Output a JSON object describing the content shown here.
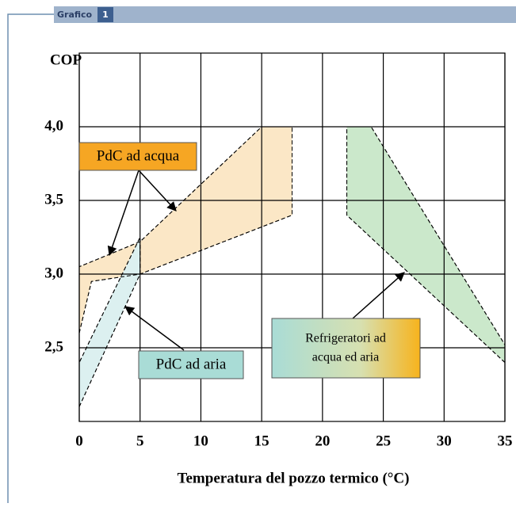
{
  "header": {
    "label": "Grafico",
    "number": "1"
  },
  "chart_data": {
    "type": "region",
    "ylabel": "COP",
    "xlabel": "Temperatura del pozzo termico (°C)",
    "xlim": [
      0,
      35
    ],
    "ylim": [
      2.0,
      4.5
    ],
    "xticks": [
      0,
      5,
      10,
      15,
      20,
      25,
      30,
      35
    ],
    "yticks": [
      {
        "value": 2.5,
        "label": "2,5"
      },
      {
        "value": 3.0,
        "label": "3,0"
      },
      {
        "value": 3.5,
        "label": "3,5"
      },
      {
        "value": 4.0,
        "label": "4,0"
      }
    ],
    "grid": true,
    "regions": [
      {
        "name": "PdC ad acqua",
        "color": "#fbe7c6",
        "x": [
          0,
          1,
          5,
          17.5,
          17.5,
          15,
          5,
          0
        ],
        "y": [
          2.6,
          2.95,
          3.0,
          3.4,
          4.0,
          4.0,
          3.22,
          3.05
        ]
      },
      {
        "name": "PdC ad aria",
        "color": "#dcf0f0",
        "x": [
          0,
          5,
          5,
          0
        ],
        "y": [
          2.1,
          3.0,
          3.25,
          2.4
        ]
      },
      {
        "name": "Refrigeratori ad acqua ed aria",
        "color": "#cbe8cb",
        "x": [
          22,
          24,
          35,
          35,
          22
        ],
        "y": [
          4.0,
          4.0,
          2.52,
          2.4,
          3.4
        ]
      }
    ],
    "annotations": [
      {
        "lines": [
          "PdC ad acqua"
        ]
      },
      {
        "lines": [
          "PdC ad aria"
        ]
      },
      {
        "lines": [
          "Refrigeratori ad",
          "acqua ed aria"
        ]
      }
    ]
  }
}
